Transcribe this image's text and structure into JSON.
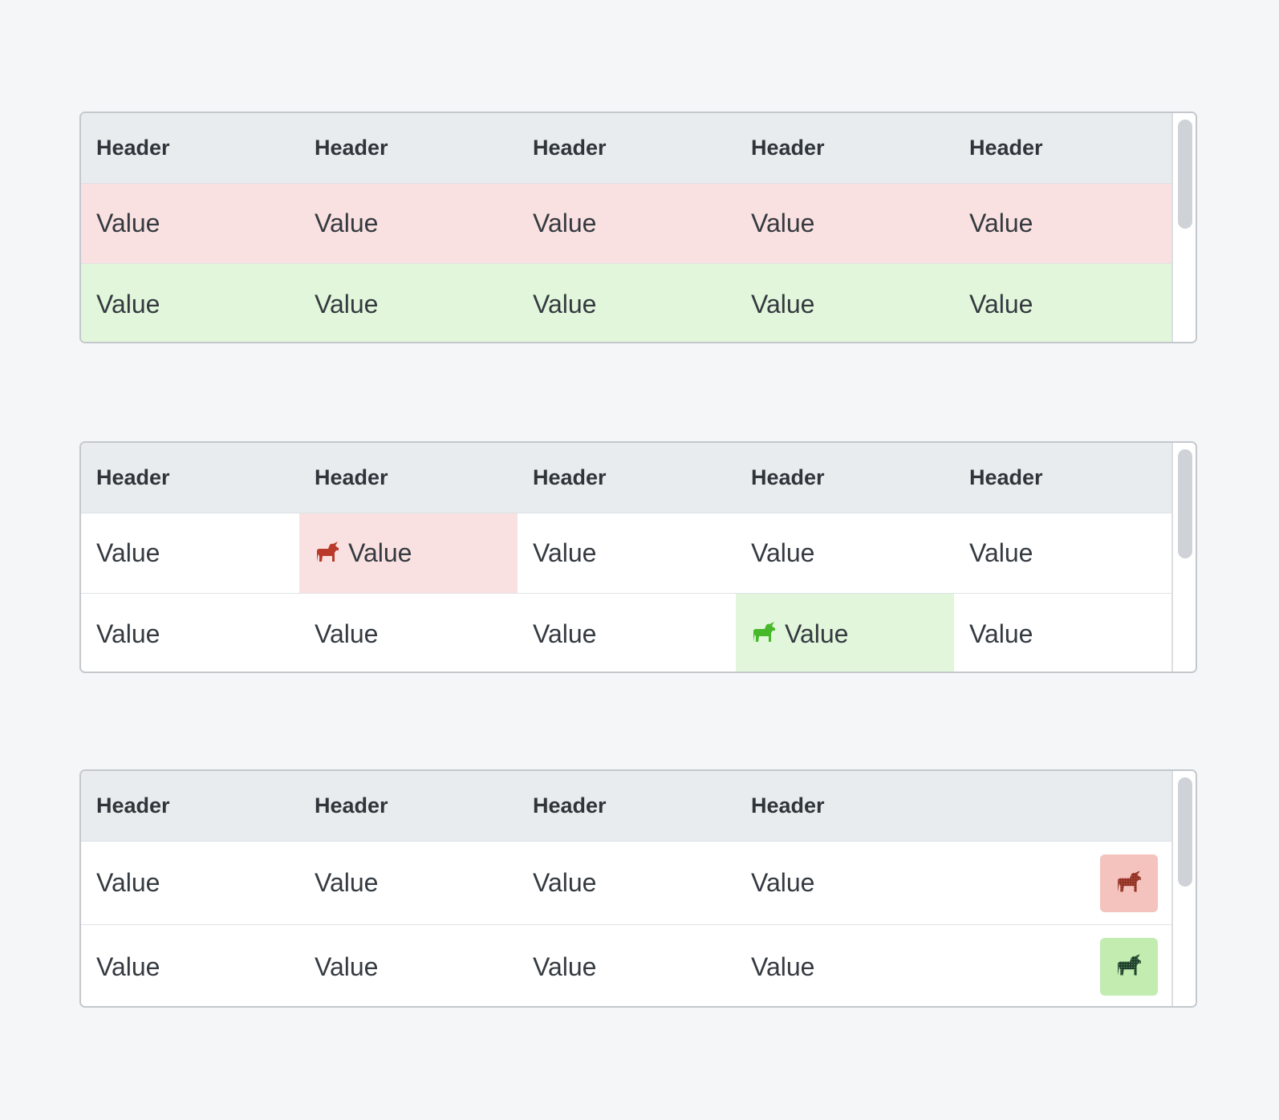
{
  "tables": [
    {
      "headers": [
        "Header",
        "Header",
        "Header",
        "Header",
        "Header"
      ],
      "rows": [
        {
          "status": "error",
          "cells": [
            "Value",
            "Value",
            "Value",
            "Value",
            "Value"
          ]
        },
        {
          "status": "success",
          "cells": [
            "Value",
            "Value",
            "Value",
            "Value",
            "Value"
          ]
        }
      ]
    },
    {
      "headers": [
        "Header",
        "Header",
        "Header",
        "Header",
        "Header"
      ],
      "rows": [
        {
          "cells": [
            "Value",
            "Value",
            "Value",
            "Value",
            "Value"
          ],
          "highlight": {
            "col": 1,
            "status": "error",
            "icon": "unicorn-icon"
          }
        },
        {
          "cells": [
            "Value",
            "Value",
            "Value",
            "Value",
            "Value"
          ],
          "highlight": {
            "col": 3,
            "status": "success",
            "icon": "unicorn-icon"
          }
        }
      ]
    },
    {
      "headers": [
        "Header",
        "Header",
        "Header",
        "Header"
      ],
      "rows": [
        {
          "cells": [
            "Value",
            "Value",
            "Value",
            "Value"
          ],
          "action": {
            "status": "error",
            "icon": "unicorn-icon"
          }
        },
        {
          "cells": [
            "Value",
            "Value",
            "Value",
            "Value"
          ],
          "action": {
            "status": "success",
            "icon": "unicorn-icon"
          }
        }
      ]
    }
  ],
  "colors": {
    "page_bg": "#f5f6f8",
    "header_bg": "#e9ecef",
    "error_bg": "#fae1e1",
    "success_bg": "#e2f6db",
    "error_icon": "#b93a2b",
    "success_icon": "#46b829",
    "error_button_bg": "#f4c3bd",
    "success_button_bg": "#c2ecb0"
  }
}
